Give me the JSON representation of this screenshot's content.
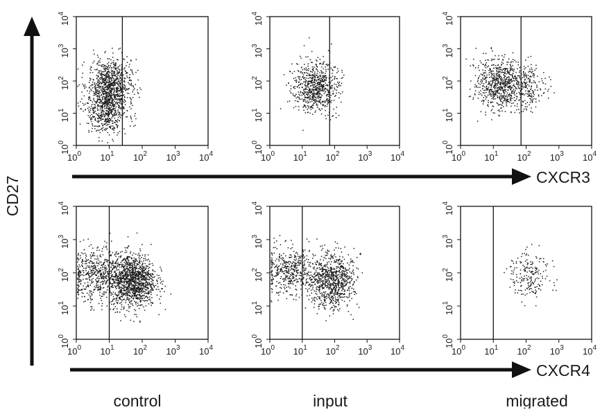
{
  "figure": {
    "y_axis_label": "CD27",
    "row_axis_labels": [
      "CXCR3",
      "CXCR4"
    ],
    "column_labels": [
      "control",
      "input",
      "migrated"
    ]
  },
  "chart_data": [
    {
      "type": "scatter",
      "row": "CXCR3",
      "column": "control",
      "x_scale": "log",
      "y_scale": "log",
      "xlim": [
        1,
        10000
      ],
      "ylim": [
        1,
        10000
      ],
      "gate_x": 25,
      "n_points": 1300,
      "clusters": [
        {
          "x": 10,
          "y": 80,
          "spread_x": 0.32,
          "spread_y": 0.38,
          "weight": 0.6
        },
        {
          "x": 8,
          "y": 12,
          "spread_x": 0.3,
          "spread_y": 0.35,
          "weight": 0.4
        }
      ]
    },
    {
      "type": "scatter",
      "row": "CXCR3",
      "column": "input",
      "x_scale": "log",
      "y_scale": "log",
      "xlim": [
        1,
        10000
      ],
      "ylim": [
        1,
        10000
      ],
      "gate_x": 70,
      "n_points": 700,
      "clusters": [
        {
          "x": 25,
          "y": 70,
          "spread_x": 0.35,
          "spread_y": 0.4,
          "weight": 1
        }
      ]
    },
    {
      "type": "scatter",
      "row": "CXCR3",
      "column": "migrated",
      "x_scale": "log",
      "y_scale": "log",
      "xlim": [
        1,
        10000
      ],
      "ylim": [
        1,
        10000
      ],
      "gate_x": 70,
      "n_points": 900,
      "clusters": [
        {
          "x": 15,
          "y": 80,
          "spread_x": 0.35,
          "spread_y": 0.4,
          "weight": 0.75
        },
        {
          "x": 100,
          "y": 70,
          "spread_x": 0.3,
          "spread_y": 0.35,
          "weight": 0.25
        }
      ]
    },
    {
      "type": "scatter",
      "row": "CXCR4",
      "column": "control",
      "x_scale": "log",
      "y_scale": "log",
      "xlim": [
        1,
        10000
      ],
      "ylim": [
        1,
        10000
      ],
      "gate_x": 10,
      "n_points": 1800,
      "clusters": [
        {
          "x": 4,
          "y": 90,
          "spread_x": 0.4,
          "spread_y": 0.4,
          "weight": 0.3
        },
        {
          "x": 50,
          "y": 60,
          "spread_x": 0.35,
          "spread_y": 0.4,
          "weight": 0.7
        }
      ]
    },
    {
      "type": "scatter",
      "row": "CXCR4",
      "column": "input",
      "x_scale": "log",
      "y_scale": "log",
      "xlim": [
        1,
        10000
      ],
      "ylim": [
        1,
        10000
      ],
      "gate_x": 10,
      "n_points": 1300,
      "clusters": [
        {
          "x": 4,
          "y": 120,
          "spread_x": 0.4,
          "spread_y": 0.35,
          "weight": 0.35
        },
        {
          "x": 80,
          "y": 60,
          "spread_x": 0.35,
          "spread_y": 0.4,
          "weight": 0.65
        }
      ]
    },
    {
      "type": "scatter",
      "row": "CXCR4",
      "column": "migrated",
      "x_scale": "log",
      "y_scale": "log",
      "xlim": [
        1,
        10000
      ],
      "ylim": [
        1,
        10000
      ],
      "gate_x": 10,
      "n_points": 200,
      "clusters": [
        {
          "x": 120,
          "y": 90,
          "spread_x": 0.3,
          "spread_y": 0.35,
          "weight": 1
        }
      ]
    }
  ],
  "tick_labels": {
    "x": [
      {
        "base": "10",
        "exp": "0"
      },
      {
        "base": "10",
        "exp": "1"
      },
      {
        "base": "10",
        "exp": "2"
      },
      {
        "base": "10",
        "exp": "3"
      },
      {
        "base": "10",
        "exp": "4"
      }
    ],
    "y": [
      {
        "base": "10",
        "exp": "0"
      },
      {
        "base": "10",
        "exp": "1"
      },
      {
        "base": "10",
        "exp": "2"
      },
      {
        "base": "10",
        "exp": "3"
      },
      {
        "base": "10",
        "exp": "4"
      }
    ]
  },
  "colors": {
    "ink": "#111111",
    "dots": "#1a1a1a",
    "background": "#ffffff"
  }
}
